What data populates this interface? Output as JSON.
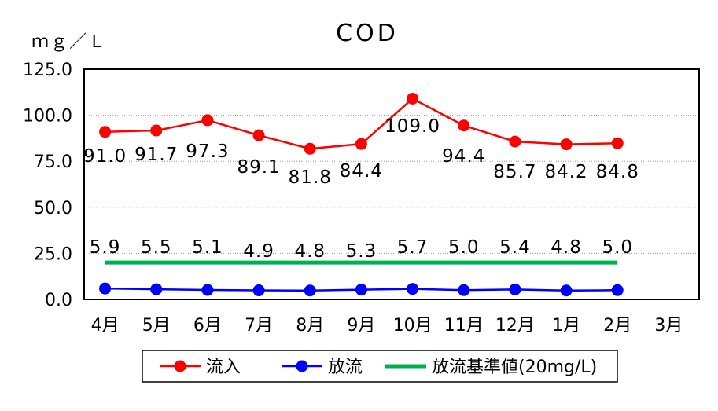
{
  "chart_data": {
    "type": "line",
    "title": "COD",
    "ylabel": "ｍｇ／Ｌ",
    "xlabel": "",
    "categories": [
      "4月",
      "5月",
      "6月",
      "7月",
      "8月",
      "9月",
      "10月",
      "11月",
      "12月",
      "1月",
      "2月",
      "3月"
    ],
    "ylim": [
      0,
      125
    ],
    "yticks": [
      "125.0",
      "100.0",
      "75.0",
      "50.0",
      "25.0",
      "0.0"
    ],
    "grid": true,
    "legend_position": "bottom",
    "series": [
      {
        "name": "流入",
        "color": "#ff0000",
        "marker": "circle",
        "values": [
          91.0,
          91.7,
          97.3,
          89.1,
          81.8,
          84.4,
          109.0,
          94.4,
          85.7,
          84.2,
          84.8,
          null
        ],
        "labels": [
          "91.0",
          "91.7",
          "97.3",
          "89.1",
          "81.8",
          "84.4",
          "109.0",
          "94.4",
          "85.7",
          "84.2",
          "84.8",
          ""
        ]
      },
      {
        "name": "放流",
        "color": "#0000ff",
        "marker": "circle",
        "values": [
          5.9,
          5.5,
          5.1,
          4.9,
          4.8,
          5.3,
          5.7,
          5.0,
          5.4,
          4.8,
          5.0,
          null
        ],
        "labels": [
          "5.9",
          "5.5",
          "5.1",
          "4.9",
          "4.8",
          "5.3",
          "5.7",
          "5.0",
          "5.4",
          "4.8",
          "5.0",
          ""
        ]
      },
      {
        "name": "放流基準値(20mg/L)",
        "color": "#00b050",
        "marker": "none",
        "values": [
          20,
          20,
          20,
          20,
          20,
          20,
          20,
          20,
          20,
          20,
          20,
          null
        ]
      }
    ]
  }
}
